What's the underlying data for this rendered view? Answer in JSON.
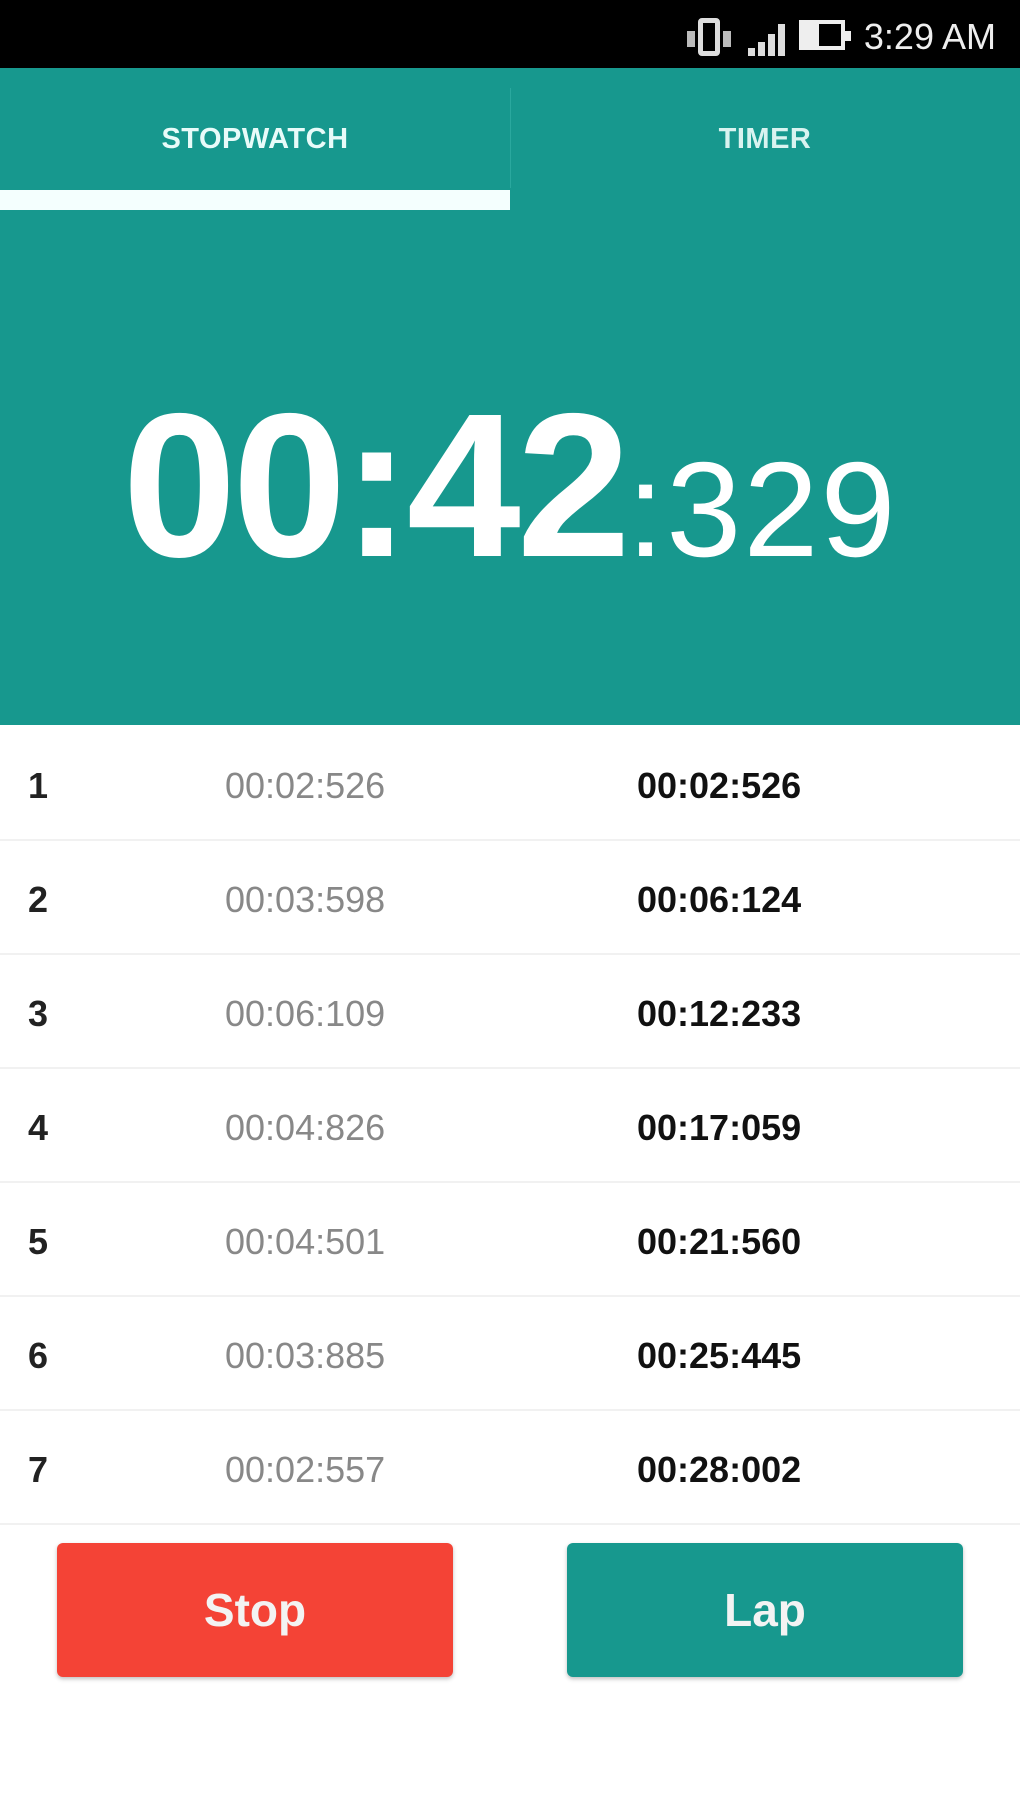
{
  "status_bar": {
    "time": "3:29 AM",
    "icons": [
      "vibrate-icon",
      "signal-icon",
      "battery-icon"
    ]
  },
  "tabs": [
    {
      "label": "STOPWATCH",
      "active": true
    },
    {
      "label": "TIMER",
      "active": false
    }
  ],
  "stopwatch": {
    "main": "00:42",
    "separator": ":",
    "ms": "329"
  },
  "laps": [
    {
      "n": "1",
      "lap": "00:02:526",
      "total": "00:02:526"
    },
    {
      "n": "2",
      "lap": "00:03:598",
      "total": "00:06:124"
    },
    {
      "n": "3",
      "lap": "00:06:109",
      "total": "00:12:233"
    },
    {
      "n": "4",
      "lap": "00:04:826",
      "total": "00:17:059"
    },
    {
      "n": "5",
      "lap": "00:04:501",
      "total": "00:21:560"
    },
    {
      "n": "6",
      "lap": "00:03:885",
      "total": "00:25:445"
    },
    {
      "n": "7",
      "lap": "00:02:557",
      "total": "00:28:002"
    }
  ],
  "buttons": {
    "stop": "Stop",
    "lap": "Lap"
  },
  "colors": {
    "accent": "#17988e",
    "stop": "#f44336"
  }
}
